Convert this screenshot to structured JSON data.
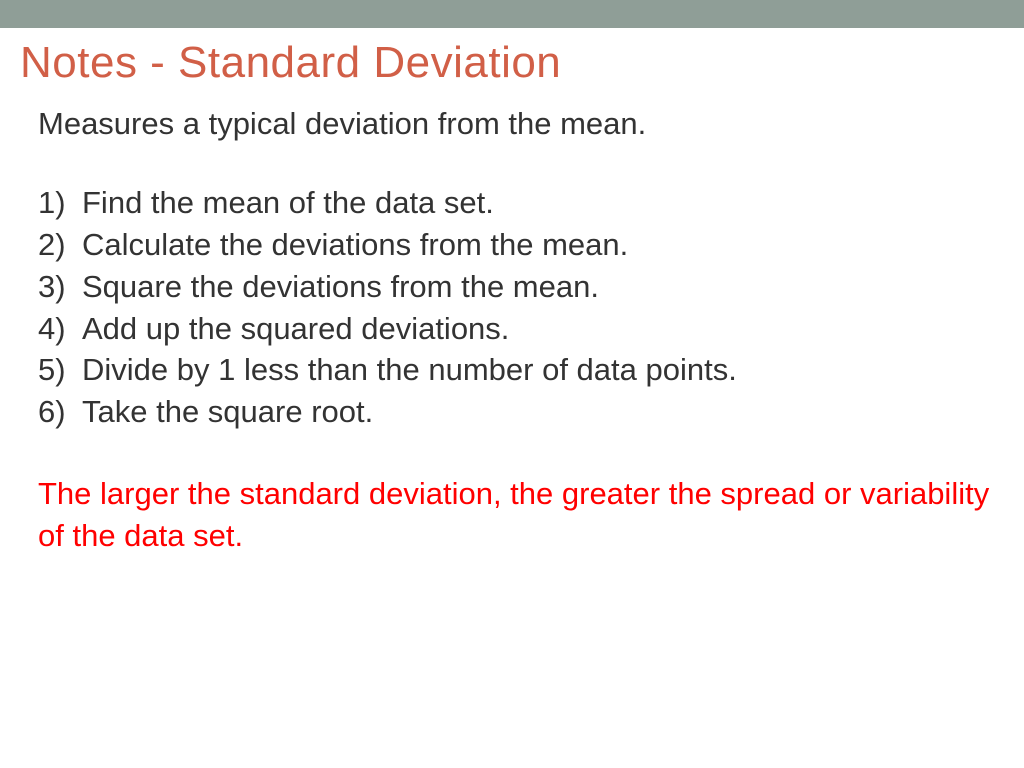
{
  "colors": {
    "top_bar": "#8f9e97",
    "title": "#d15f47",
    "body_text": "#333333",
    "conclusion_text": "#ff0000",
    "background": "#ffffff"
  },
  "typography": {
    "title_fontsize": 44,
    "body_fontsize": 31,
    "font_family": "Arial"
  },
  "title": "Notes - Standard Deviation",
  "intro": "Measures a typical deviation from the mean.",
  "steps": [
    {
      "number": "1)",
      "text": "Find the mean of the data set."
    },
    {
      "number": "2)",
      "text": "Calculate the deviations from the mean."
    },
    {
      "number": "3)",
      "text": "Square the deviations from the mean."
    },
    {
      "number": "4)",
      "text": "Add up the squared deviations."
    },
    {
      "number": "5)",
      "text": "Divide by 1 less than the number of data points."
    },
    {
      "number": "6)",
      "text": "Take the square root."
    }
  ],
  "conclusion": "The larger the standard deviation, the greater the spread or variability of the data set."
}
